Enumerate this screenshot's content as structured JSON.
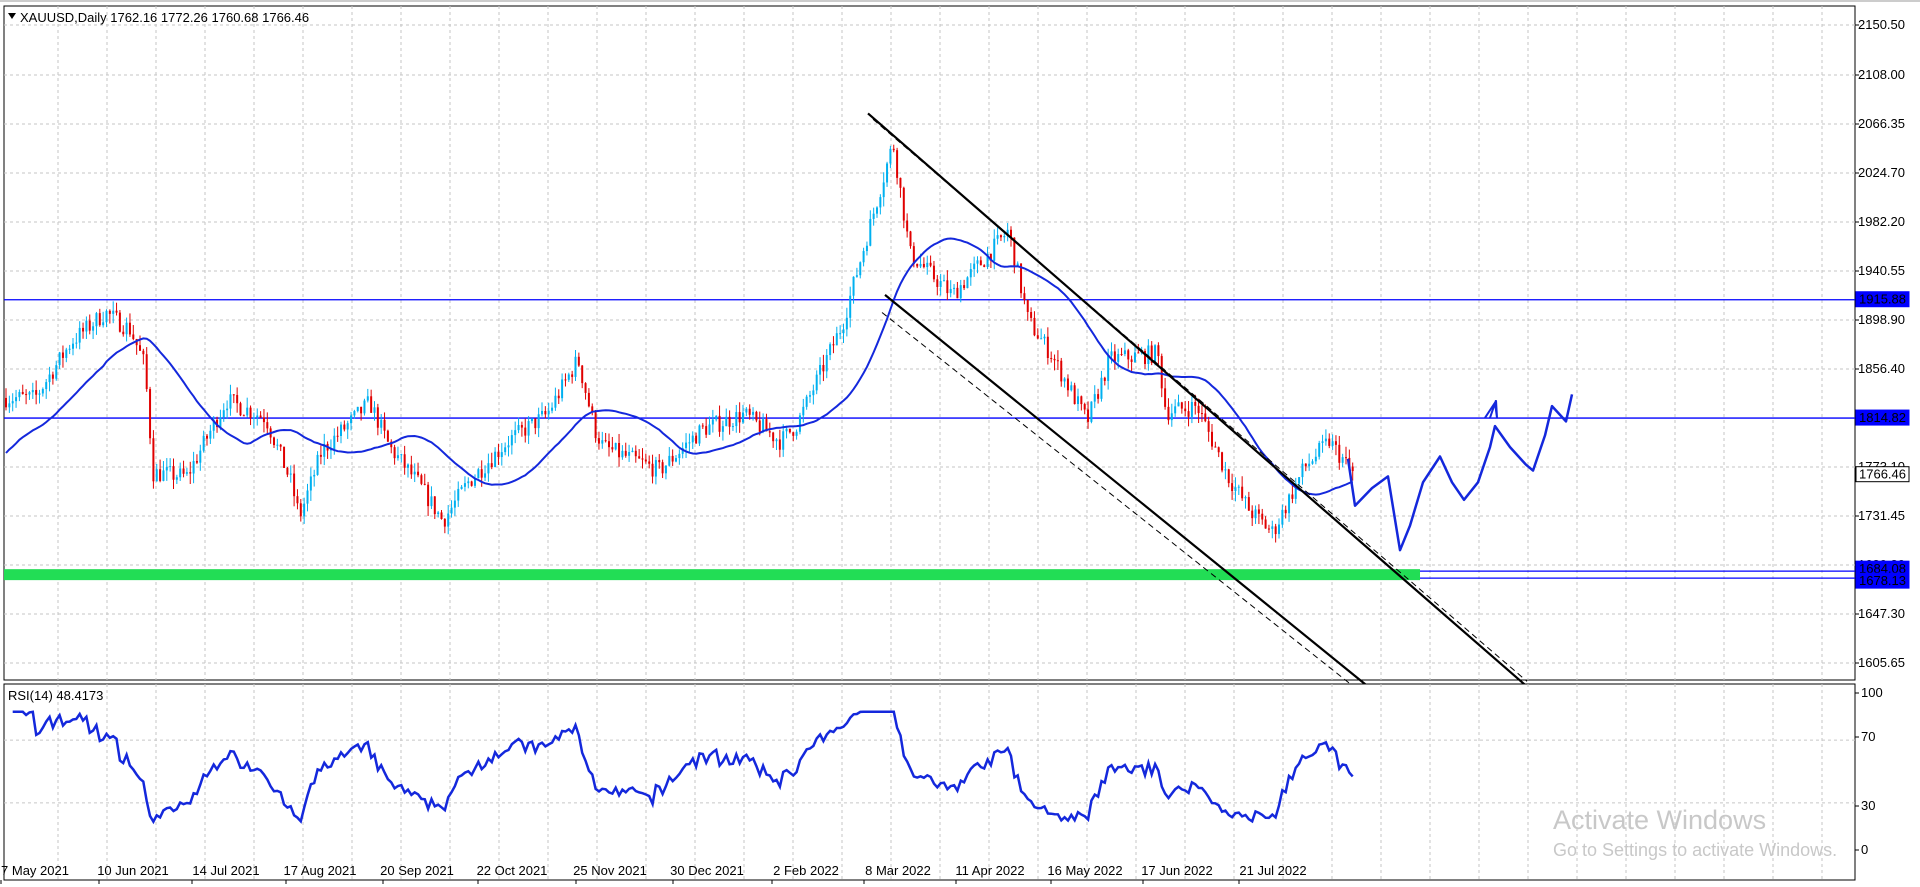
{
  "header": {
    "symbol_line": "XAUUSD,Daily  1762.16 1772.26 1760.68 1766.46",
    "rsi_line": "RSI(14) 48.4173"
  },
  "price_axis": {
    "ticks": [
      "2150.50",
      "2108.00",
      "2066.35",
      "2024.70",
      "1982.20",
      "1940.55",
      "1898.90",
      "1856.40",
      "1773.10",
      "1731.45",
      "1689.80",
      "1647.30",
      "1605.65"
    ],
    "labels": [
      {
        "text": "1915.88",
        "value": 1915.88,
        "style": "line"
      },
      {
        "text": "1814.82",
        "value": 1814.82,
        "style": "line"
      },
      {
        "text": "1766.46",
        "value": 1766.46,
        "style": "current"
      },
      {
        "text": "1684.08",
        "value": 1684.08,
        "style": "line"
      },
      {
        "text": "1678.13",
        "value": 1678.13,
        "style": "line"
      }
    ]
  },
  "rsi_axis": {
    "ticks": [
      "100",
      "70",
      "30",
      "0"
    ]
  },
  "time_axis": {
    "labels": [
      "7 May 2021",
      "10 Jun 2021",
      "14 Jul 2021",
      "17 Aug 2021",
      "20 Sep 2021",
      "22 Oct 2021",
      "25 Nov 2021",
      "30 Dec 2021",
      "2 Feb 2022",
      "8 Mar 2022",
      "11 Apr 2022",
      "16 May 2022",
      "17 Jun 2022",
      "21 Jul 2022"
    ]
  },
  "watermark": {
    "title": "Activate Windows",
    "subtitle": "Go to Settings to activate Windows."
  },
  "colors": {
    "bull": "#00b0f0",
    "bear": "#e00000",
    "ma": "#1428dc",
    "rsi": "#1428dc",
    "hline": "#0000ff",
    "zone": "#22dd55",
    "grid": "#c6c6c6",
    "channel": "#000000",
    "current_bg": "#000000"
  },
  "chart_data": {
    "type": "candlestick",
    "symbol": "XAUUSD",
    "timeframe": "Daily",
    "last_bar": {
      "open": 1762.16,
      "high": 1772.26,
      "low": 1760.68,
      "close": 1766.46
    },
    "ylim": [
      1590,
      2160
    ],
    "horizontal_levels": [
      1915.88,
      1814.82,
      1684.08,
      1678.13
    ],
    "support_zone": [
      1678.13,
      1684.08
    ],
    "close_path": [
      [
        "2021-05-07",
        1832
      ],
      [
        "2021-05-20",
        1880
      ],
      [
        "2021-06-01",
        1905
      ],
      [
        "2021-06-10",
        1890
      ],
      [
        "2021-06-15",
        1860
      ],
      [
        "2021-06-18",
        1768
      ],
      [
        "2021-06-30",
        1765
      ],
      [
        "2021-07-14",
        1830
      ],
      [
        "2021-07-28",
        1815
      ],
      [
        "2021-08-06",
        1760
      ],
      [
        "2021-08-09",
        1730
      ],
      [
        "2021-08-17",
        1787
      ],
      [
        "2021-09-03",
        1828
      ],
      [
        "2021-09-10",
        1790
      ],
      [
        "2021-09-20",
        1760
      ],
      [
        "2021-09-29",
        1727
      ],
      [
        "2021-10-08",
        1760
      ],
      [
        "2021-10-22",
        1795
      ],
      [
        "2021-11-05",
        1818
      ],
      [
        "2021-11-16",
        1865
      ],
      [
        "2021-11-22",
        1805
      ],
      [
        "2021-11-25",
        1790
      ],
      [
        "2021-12-15",
        1770
      ],
      [
        "2021-12-30",
        1805
      ],
      [
        "2022-01-14",
        1818
      ],
      [
        "2022-01-27",
        1795
      ],
      [
        "2022-02-02",
        1810
      ],
      [
        "2022-02-18",
        1895
      ],
      [
        "2022-03-08",
        2050
      ],
      [
        "2022-03-14",
        1955
      ],
      [
        "2022-03-29",
        1920
      ],
      [
        "2022-04-11",
        1955
      ],
      [
        "2022-04-18",
        1975
      ],
      [
        "2022-04-25",
        1898
      ],
      [
        "2022-05-03",
        1870
      ],
      [
        "2022-05-16",
        1812
      ],
      [
        "2022-05-24",
        1865
      ],
      [
        "2022-06-10",
        1870
      ],
      [
        "2022-06-13",
        1820
      ],
      [
        "2022-06-24",
        1825
      ],
      [
        "2022-07-05",
        1765
      ],
      [
        "2022-07-13",
        1735
      ],
      [
        "2022-07-21",
        1717
      ],
      [
        "2022-08-01",
        1772
      ],
      [
        "2022-08-10",
        1795
      ],
      [
        "2022-08-19",
        1766
      ]
    ],
    "rsi_period": 14,
    "rsi_last": 48.4173,
    "rsi_ylim": [
      0,
      100
    ],
    "rsi_levels": [
      70,
      30
    ]
  }
}
